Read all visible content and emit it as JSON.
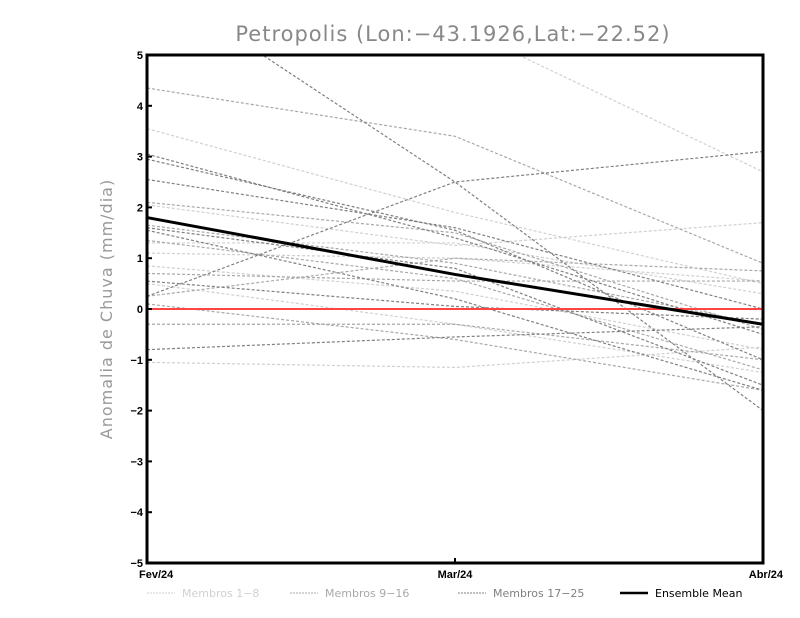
{
  "chart_data": {
    "type": "line",
    "title": "Petropolis (Lon:−43.1926,Lat:−22.52)",
    "xlabel": "",
    "ylabel": "Anomalia de Chuva (mm/dia)",
    "x": [
      "Fev/24",
      "Mar/24",
      "Abr/24"
    ],
    "ylim": [
      -5,
      5
    ],
    "yticks": [
      "5",
      "4",
      "3",
      "2",
      "1",
      "0",
      "−1",
      "−2",
      "−3",
      "−4",
      "−5"
    ],
    "ytick_values": [
      5,
      4,
      3,
      2,
      1,
      0,
      -1,
      -2,
      -3,
      -4,
      -5
    ],
    "grid": false,
    "reference_line": {
      "value": 0,
      "color": "#ff4444"
    },
    "groups": [
      {
        "name": "Membros 1-8",
        "color": "#d0d0d0",
        "style": "dashed",
        "members": [
          [
            3.55,
            1.9,
            0.5
          ],
          [
            2.05,
            1.25,
            1.7
          ],
          [
            1.1,
            1.0,
            0.55
          ],
          [
            0.85,
            0.35,
            -0.8
          ],
          [
            1.3,
            1.3,
            0.3
          ],
          [
            -1.05,
            -1.15,
            -0.75
          ],
          [
            7.6,
            5.6,
            2.7
          ],
          [
            0.5,
            -0.3,
            -1.25
          ]
        ]
      },
      {
        "name": "Membros 9-16",
        "color": "#a8a8a8",
        "style": "dashed",
        "members": [
          [
            4.35,
            3.4,
            0.9
          ],
          [
            2.1,
            1.5,
            -0.4
          ],
          [
            1.65,
            0.9,
            -0.3
          ],
          [
            0.25,
            1.0,
            0.75
          ],
          [
            -0.3,
            -0.3,
            -1.0
          ],
          [
            1.35,
            0.6,
            -1.2
          ],
          [
            0.7,
            0.55,
            0.55
          ],
          [
            0.1,
            -0.6,
            -1.6
          ]
        ]
      },
      {
        "name": "Membros 17-25",
        "color": "#808080",
        "style": "dashed",
        "members": [
          [
            3.05,
            1.4,
            -0.5
          ],
          [
            2.95,
            1.55,
            -1.0
          ],
          [
            2.55,
            1.6,
            0.0
          ],
          [
            1.6,
            0.8,
            -1.5
          ],
          [
            1.55,
            0.2,
            -1.6
          ],
          [
            0.55,
            0.05,
            -0.2
          ],
          [
            0.25,
            2.5,
            3.1
          ],
          [
            -0.8,
            -0.55,
            -0.35
          ],
          [
            6.5,
            2.5,
            -2.0
          ]
        ]
      }
    ],
    "series": [
      {
        "name": "Ensemble Mean",
        "values": [
          1.8,
          0.68,
          -0.3
        ],
        "color": "#000000"
      }
    ],
    "legend": [
      "Membros 1-8",
      "Membros 9-16",
      "Membros 17-25",
      "Ensemble Mean"
    ],
    "legend_position": "bottom"
  }
}
